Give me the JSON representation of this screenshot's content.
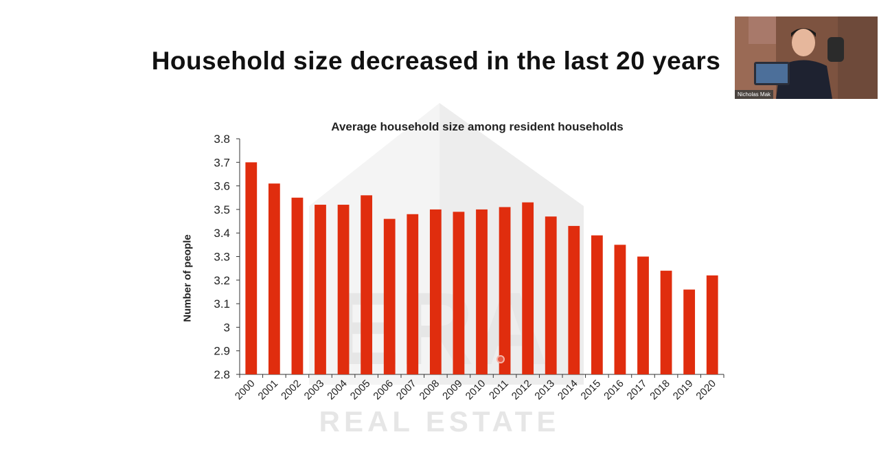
{
  "slide": {
    "title": "Household size decreased in the last 20 years"
  },
  "watermark": {
    "line1": "ERA",
    "line2": "REAL ESTATE"
  },
  "video": {
    "name": "Nicholas Mak"
  },
  "colors": {
    "bar": "#e02d0e",
    "axis": "#333333",
    "watermark": "#ececec"
  },
  "chart_data": {
    "type": "bar",
    "title": "Average household size among resident households",
    "ylabel": "Number of people",
    "xlabel": "",
    "categories": [
      "2000",
      "2001",
      "2002",
      "2003",
      "2004",
      "2005",
      "2006",
      "2007",
      "2008",
      "2009",
      "2010",
      "2011",
      "2012",
      "2013",
      "2014",
      "2015",
      "2016",
      "2017",
      "2018",
      "2019",
      "2020"
    ],
    "values": [
      3.7,
      3.61,
      3.55,
      3.52,
      3.52,
      3.56,
      3.46,
      3.48,
      3.5,
      3.49,
      3.5,
      3.51,
      3.53,
      3.47,
      3.43,
      3.39,
      3.35,
      3.3,
      3.24,
      3.16,
      3.22
    ],
    "yticks": [
      "2.8",
      "2.9",
      "3",
      "3.1",
      "3.2",
      "3.3",
      "3.4",
      "3.5",
      "3.6",
      "3.7",
      "3.8"
    ],
    "ylim": [
      2.8,
      3.8
    ],
    "grid": false,
    "legend": "none"
  }
}
